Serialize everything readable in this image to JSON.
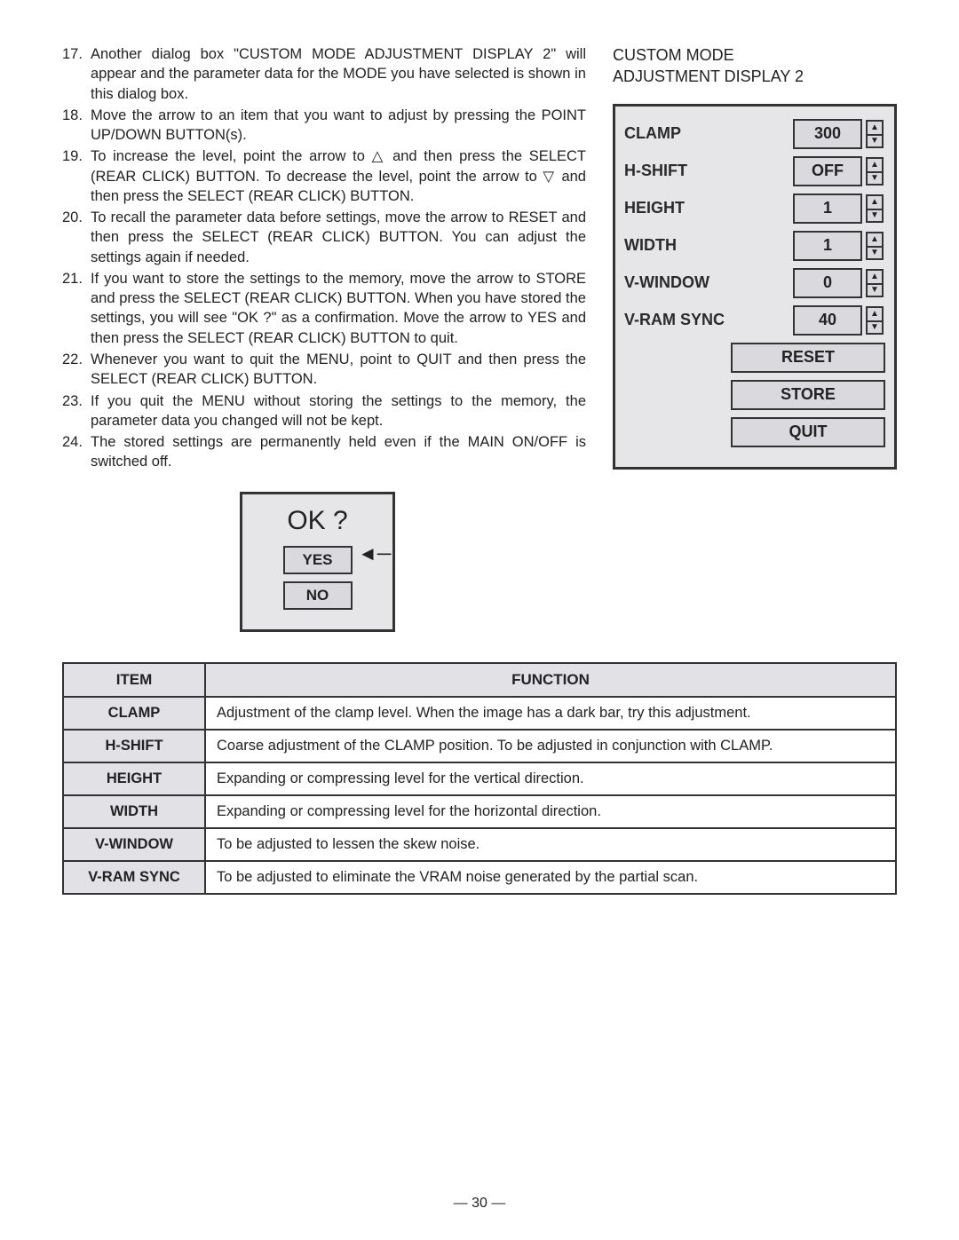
{
  "instructions": [
    {
      "n": "17.",
      "t": "Another dialog box \"CUSTOM MODE ADJUSTMENT DISPLAY 2\" will appear and the parameter data for the MODE you have selected is shown in this dialog box."
    },
    {
      "n": "18.",
      "t": "Move the arrow to an item that you want to adjust by pressing the POINT UP/DOWN BUTTON(s)."
    },
    {
      "n": "19.",
      "t": "To increase the level, point the arrow to △ and then press the SELECT (REAR CLICK) BUTTON. To decrease the level, point the arrow to ▽ and then press the SELECT (REAR CLICK) BUTTON."
    },
    {
      "n": "20.",
      "t": "To recall the parameter data before settings, move the arrow to RESET and then press the SELECT (REAR CLICK) BUTTON. You can adjust the settings again if needed."
    },
    {
      "n": "21.",
      "t": "If you want to store the settings to the memory, move the arrow to STORE and press the SELECT (REAR CLICK) BUTTON. When you have stored the settings, you will see \"OK ?\" as a confirmation. Move the arrow to YES and then press the SELECT (REAR CLICK) BUTTON to quit."
    },
    {
      "n": "22.",
      "t": "Whenever you want to quit the MENU, point to QUIT and then press the SELECT (REAR CLICK) BUTTON."
    },
    {
      "n": "23.",
      "t": "If you quit the MENU without storing the settings to the memory, the parameter data you changed will not be kept."
    },
    {
      "n": "24.",
      "t": "The stored settings are permanently held even if the MAIN ON/OFF is switched off."
    }
  ],
  "right_title_l1": "CUSTOM MODE",
  "right_title_l2": "ADJUSTMENT DISPLAY 2",
  "panel": {
    "rows": [
      {
        "label": "CLAMP",
        "value": "300"
      },
      {
        "label": "H-SHIFT",
        "value": "OFF"
      },
      {
        "label": "HEIGHT",
        "value": "1"
      },
      {
        "label": "WIDTH",
        "value": "1"
      },
      {
        "label": "V-WINDOW",
        "value": "0"
      },
      {
        "label": "V-RAM SYNC",
        "value": "40"
      }
    ],
    "buttons": {
      "reset": "RESET",
      "store": "STORE",
      "quit": "QUIT"
    },
    "up_glyph": "▲",
    "down_glyph": "▼"
  },
  "ok_dialog": {
    "title": "OK ?",
    "yes": "YES",
    "no": "NO",
    "arrow": "◄─"
  },
  "func_table": {
    "headers": {
      "item": "ITEM",
      "function": "FUNCTION"
    },
    "rows": [
      {
        "item": "CLAMP",
        "function": "Adjustment of the clamp level. When the image has a dark bar, try this adjustment."
      },
      {
        "item": "H-SHIFT",
        "function": "Coarse adjustment of the CLAMP position. To be adjusted in conjunction with CLAMP."
      },
      {
        "item": "HEIGHT",
        "function": "Expanding or compressing level for the vertical direction."
      },
      {
        "item": "WIDTH",
        "function": "Expanding or compressing level for the horizontal direction."
      },
      {
        "item": "V-WINDOW",
        "function": "To be adjusted to lessen the skew noise."
      },
      {
        "item": "V-RAM SYNC",
        "function": "To be adjusted to eliminate the VRAM noise generated by the partial scan."
      }
    ]
  },
  "page_number": "— 30 —",
  "colors": {
    "panel_bg": "#e6e6e8",
    "cell_bg": "#dadade",
    "border": "#333333",
    "text": "#222222"
  }
}
